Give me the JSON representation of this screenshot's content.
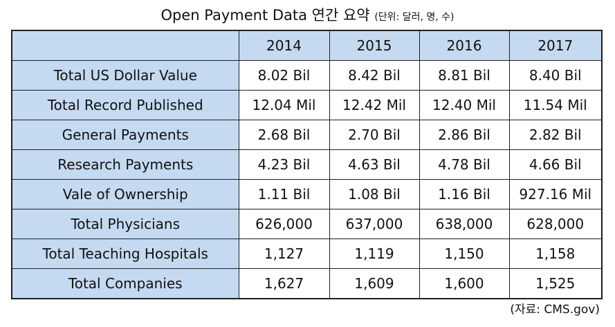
{
  "title": {
    "main": "Open Payment Data 연간 요약",
    "unit": "(단위: 달러, 명, 수)"
  },
  "table": {
    "columns": [
      "2014",
      "2015",
      "2016",
      "2017"
    ],
    "rows": [
      {
        "label": "Total US Dollar Value",
        "values": [
          "8.02 Bil",
          "8.42 Bil",
          "8.81 Bil",
          "8.40 Bil"
        ]
      },
      {
        "label": "Total Record Published",
        "values": [
          "12.04 Mil",
          "12.42 Mil",
          "12.40 Mil",
          "11.54 Mil"
        ]
      },
      {
        "label": "General Payments",
        "values": [
          "2.68 Bil",
          "2.70 Bil",
          "2.86 Bil",
          "2.82 Bil"
        ]
      },
      {
        "label": "Research Payments",
        "values": [
          "4.23 Bil",
          "4.63 Bil",
          "4.78 Bil",
          "4.66 Bil"
        ]
      },
      {
        "label": "Vale of Ownership",
        "values": [
          "1.11 Bil",
          "1.08 Bil",
          "1.16 Bil",
          "927.16 Mil"
        ]
      },
      {
        "label": "Total Physicians",
        "values": [
          "626,000",
          "637,000",
          "638,000",
          "628,000"
        ]
      },
      {
        "label": "Total Teaching Hospitals",
        "values": [
          "1,127",
          "1,119",
          "1,150",
          "1,158"
        ]
      },
      {
        "label": "Total Companies",
        "values": [
          "1,627",
          "1,609",
          "1,600",
          "1,525"
        ]
      }
    ]
  },
  "source": "(자료: CMS.gov)",
  "colors": {
    "header_fill": "#c5d9f1",
    "border": "#1e1e1e"
  }
}
